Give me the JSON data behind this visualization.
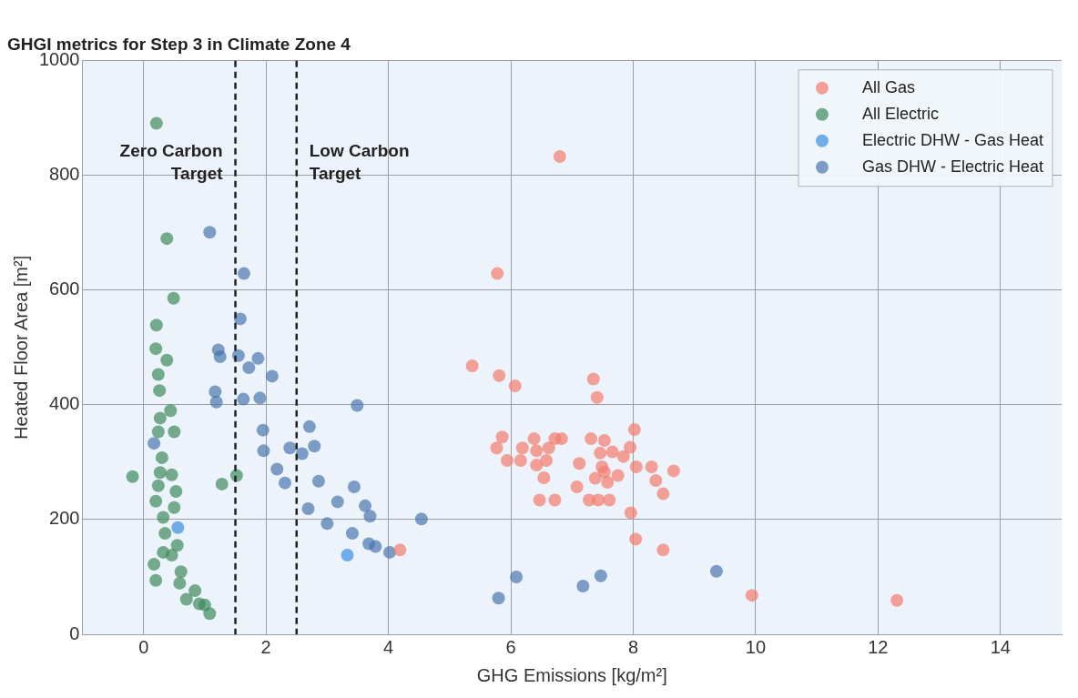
{
  "chart_data": {
    "type": "scatter",
    "title": "GHGI metrics for Step 3 in Climate Zone 4",
    "xlabel": "GHG Emissions [kg/m²]",
    "ylabel": "Heated Floor Area [m²]",
    "xlim": [
      -1,
      15
    ],
    "xticks": [
      0,
      2,
      4,
      6,
      8,
      10,
      12,
      14
    ],
    "ylim": [
      0,
      1000
    ],
    "yticks": [
      0,
      200,
      400,
      600,
      800,
      1000
    ],
    "grid": true,
    "legend": "top right",
    "marker": "circle",
    "ref_lines": [
      {
        "axis": "x",
        "value": 1.5,
        "label": "Zero Carbon Target",
        "color": "#222222",
        "line_style": "dashed"
      },
      {
        "axis": "x",
        "value": 2.5,
        "label": "Low Carbon Target",
        "color": "#222222",
        "line_style": "dashed"
      }
    ],
    "series": [
      {
        "name": "All Gas",
        "color": "#f47a6e",
        "x": [
          5.37,
          5.78,
          5.81,
          6.07,
          6.8,
          7.35,
          7.41,
          8.02,
          5.86,
          5.77,
          5.94,
          6.16,
          6.19,
          6.38,
          6.42,
          6.42,
          6.58,
          6.62,
          6.72,
          6.83,
          6.54,
          6.47,
          6.65,
          6.72,
          7.12,
          7.08,
          7.31,
          7.53,
          7.46,
          7.66,
          7.84,
          7.95,
          7.49,
          7.53,
          7.38,
          7.58,
          7.75,
          7.28,
          7.43,
          7.61,
          8.05,
          8.3,
          8.37,
          8.49,
          8.66,
          7.96,
          8.04,
          8.49,
          9.94,
          12.31,
          4.19
        ],
        "values": [
          468,
          629,
          451,
          433,
          833,
          445,
          413,
          357,
          344,
          325,
          303,
          303,
          325,
          341,
          320,
          295,
          303,
          325,
          341,
          341,
          273,
          234,
          null,
          234,
          298,
          257,
          341,
          338,
          316,
          318,
          310,
          326,
          292,
          283,
          272,
          265,
          277,
          234,
          234,
          234,
          292,
          292,
          268,
          245,
          285,
          212,
          166,
          147,
          68,
          59,
          147
        ]
      },
      {
        "name": "All Electric",
        "color": "#3f8a5c",
        "x": [
          0.21,
          0.38,
          0.49,
          0.21,
          0.2,
          0.38,
          0.24,
          0.26,
          0.44,
          0.27,
          -0.18,
          1.28,
          1.52,
          0.24,
          0.3,
          0.27,
          0.46,
          0.24,
          0.53,
          0.2,
          0.5,
          0.32,
          0.35,
          0.55,
          0.46,
          0.17,
          0.61,
          0.2,
          0.59,
          0.84,
          0.7,
          0.91,
          1.08,
          1.0,
          0.32,
          0.5
        ],
        "values": [
          891,
          690,
          586,
          539,
          498,
          478,
          453,
          425,
          390,
          377,
          275,
          262,
          277,
          353,
          308,
          282,
          278,
          259,
          249,
          232,
          221,
          204,
          176,
          155,
          138,
          122,
          109,
          94,
          89,
          76,
          61,
          53,
          36,
          51,
          143,
          353
        ]
      },
      {
        "name": "Electric DHW - Gas Heat",
        "color": "#3a8ee0",
        "x": [
          0.56,
          3.33
        ],
        "values": [
          186,
          138
        ]
      },
      {
        "name": "Gas DHW - Electric Heat",
        "color": "#4a76ad",
        "x": [
          1.08,
          1.64,
          1.58,
          1.22,
          1.25,
          1.55,
          1.87,
          1.72,
          2.1,
          1.17,
          1.19,
          1.58,
          1.63,
          1.9,
          3.49,
          1.95,
          2.71,
          1.96,
          2.39,
          2.59,
          2.79,
          2.18,
          2.31,
          2.86,
          2.69,
          3.17,
          3.44,
          3.62,
          3.7,
          3.0,
          3.41,
          3.68,
          3.79,
          4.02,
          4.54,
          5.8,
          6.09,
          7.18,
          7.47,
          9.36,
          0.17
        ],
        "values": [
          701,
          629,
          550,
          496,
          484,
          486,
          481,
          465,
          450,
          423,
          405,
          null,
          410,
          412,
          399,
          356,
          362,
          320,
          325,
          315,
          328,
          288,
          264,
          267,
          219,
          231,
          257,
          224,
          206,
          193,
          176,
          158,
          153,
          143,
          201,
          63,
          100,
          84,
          102,
          110,
          333
        ]
      }
    ]
  }
}
